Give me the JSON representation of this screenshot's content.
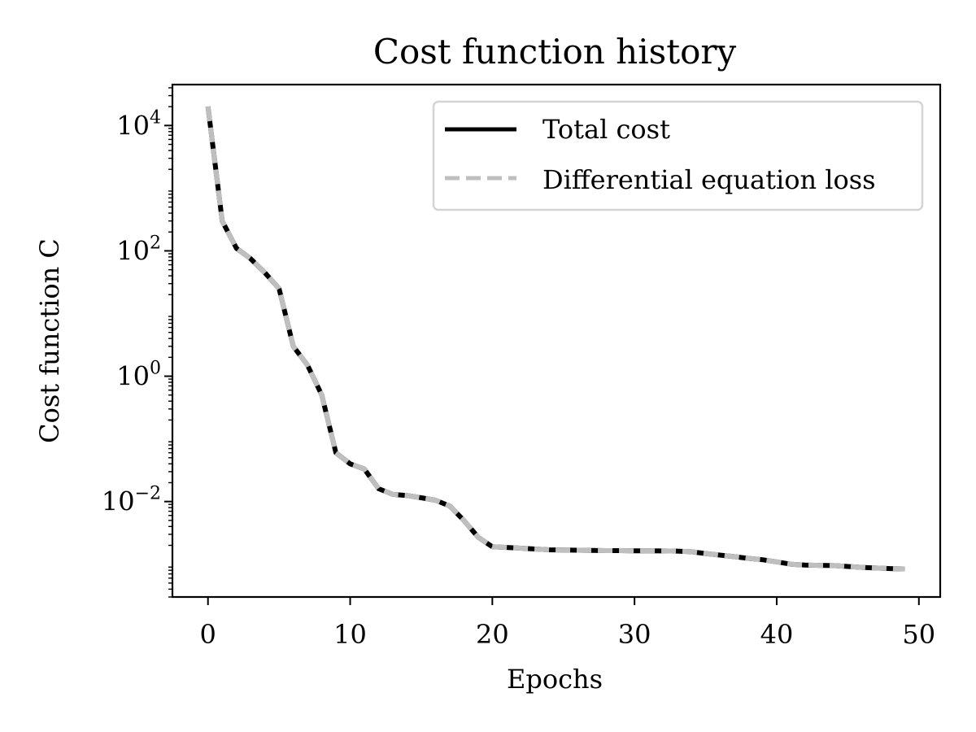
{
  "chart_data": {
    "type": "line",
    "title": "Cost function history",
    "xlabel": "Epochs",
    "ylabel": "Cost function C",
    "yscale": "log",
    "xlim": [
      -2.5,
      51.5
    ],
    "ylim": [
      0.0003,
      45000
    ],
    "xticks": [
      0,
      10,
      20,
      30,
      40,
      50
    ],
    "yticks": [
      0.01,
      1,
      100,
      10000
    ],
    "ytick_labels": [
      {
        "base": "10",
        "exp": "−2"
      },
      {
        "base": "10",
        "exp": "0"
      },
      {
        "base": "10",
        "exp": "2"
      },
      {
        "base": "10",
        "exp": "4"
      }
    ],
    "grid": false,
    "legend_position": "top-right",
    "x": [
      0,
      1,
      2,
      3,
      4,
      5,
      6,
      7,
      8,
      9,
      10,
      11,
      12,
      13,
      14,
      15,
      16,
      17,
      18,
      19,
      20,
      21,
      22,
      23,
      24,
      25,
      26,
      27,
      28,
      29,
      30,
      31,
      32,
      33,
      34,
      35,
      36,
      37,
      38,
      39,
      40,
      41,
      42,
      43,
      44,
      45,
      46,
      47,
      48,
      49
    ],
    "series": [
      {
        "name": "Total cost",
        "color": "#000000",
        "style": "solid",
        "values": [
          20000,
          300,
          110,
          75,
          45,
          25,
          3,
          1.5,
          0.5,
          0.06,
          0.04,
          0.033,
          0.016,
          0.013,
          0.0125,
          0.0115,
          0.0105,
          0.0085,
          0.005,
          0.0027,
          0.0019,
          0.00185,
          0.0018,
          0.00175,
          0.0017,
          0.00168,
          0.00167,
          0.00166,
          0.00165,
          0.00165,
          0.00164,
          0.00164,
          0.00163,
          0.00162,
          0.00158,
          0.00148,
          0.0014,
          0.00132,
          0.00124,
          0.00118,
          0.00109,
          0.001,
          0.00097,
          0.00096,
          0.00095,
          0.00092,
          0.00089,
          0.00087,
          0.00085,
          0.00084
        ]
      },
      {
        "name": "Differential equation loss",
        "color": "#bfbfbf",
        "style": "dashed",
        "values": [
          20000,
          300,
          110,
          75,
          45,
          25,
          3,
          1.5,
          0.5,
          0.06,
          0.04,
          0.033,
          0.016,
          0.013,
          0.0125,
          0.0115,
          0.0105,
          0.0085,
          0.005,
          0.0027,
          0.0019,
          0.00185,
          0.0018,
          0.00175,
          0.0017,
          0.00168,
          0.00167,
          0.00166,
          0.00165,
          0.00165,
          0.00164,
          0.00164,
          0.00163,
          0.00162,
          0.00158,
          0.00148,
          0.0014,
          0.00132,
          0.00124,
          0.00118,
          0.00109,
          0.001,
          0.00097,
          0.00096,
          0.00095,
          0.00092,
          0.00089,
          0.00087,
          0.00085,
          0.00084
        ]
      }
    ]
  }
}
